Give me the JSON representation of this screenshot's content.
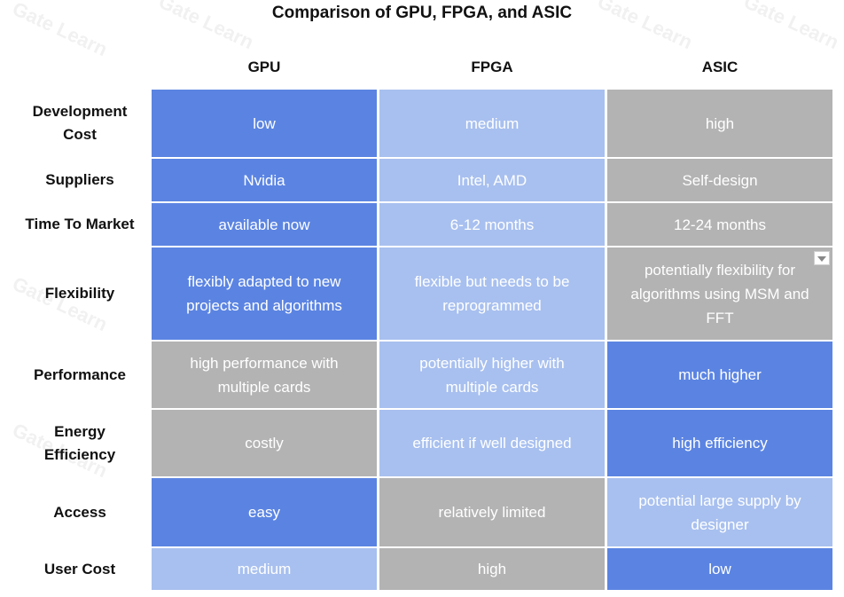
{
  "title": "Comparison of GPU, FPGA, and ASIC",
  "columns": [
    "GPU",
    "FPGA",
    "ASIC"
  ],
  "rows": [
    {
      "label": "Development Cost",
      "cells": [
        "low",
        "medium",
        "high"
      ]
    },
    {
      "label": "Suppliers",
      "cells": [
        "Nvidia",
        "Intel, AMD",
        "Self-design"
      ]
    },
    {
      "label": "Time To Market",
      "cells": [
        "available now",
        "6-12 months",
        "12-24 months"
      ]
    },
    {
      "label": "Flexibility",
      "cells": [
        "flexibly adapted to new projects and algorithms",
        "flexible but needs to be reprogrammed",
        "potentially flexibility for algorithms using MSM and FFT"
      ]
    },
    {
      "label": "Performance",
      "cells": [
        "high performance with multiple cards",
        "potentially higher with multiple cards",
        "much higher"
      ]
    },
    {
      "label": "Energy Efficiency",
      "cells": [
        "costly",
        "efficient if well designed",
        "high efficiency"
      ]
    },
    {
      "label": "Access",
      "cells": [
        "easy",
        "relatively limited",
        "potential large supply by designer"
      ]
    },
    {
      "label": "User Cost",
      "cells": [
        "medium",
        "high",
        "low"
      ]
    }
  ],
  "colors": {
    "blue": "#5b84e2",
    "light_blue": "#a8c0ef",
    "gray": "#b3b3b3"
  },
  "cell_colors": [
    [
      "blue",
      "light_blue",
      "gray"
    ],
    [
      "blue",
      "light_blue",
      "gray"
    ],
    [
      "blue",
      "light_blue",
      "gray"
    ],
    [
      "blue",
      "light_blue",
      "gray"
    ],
    [
      "gray",
      "light_blue",
      "blue"
    ],
    [
      "gray",
      "light_blue",
      "blue"
    ],
    [
      "blue",
      "gray",
      "light_blue"
    ],
    [
      "light_blue",
      "gray",
      "blue"
    ]
  ],
  "watermark": "Gate Learn",
  "icons": {
    "dropdown": "chevron-down-icon"
  }
}
